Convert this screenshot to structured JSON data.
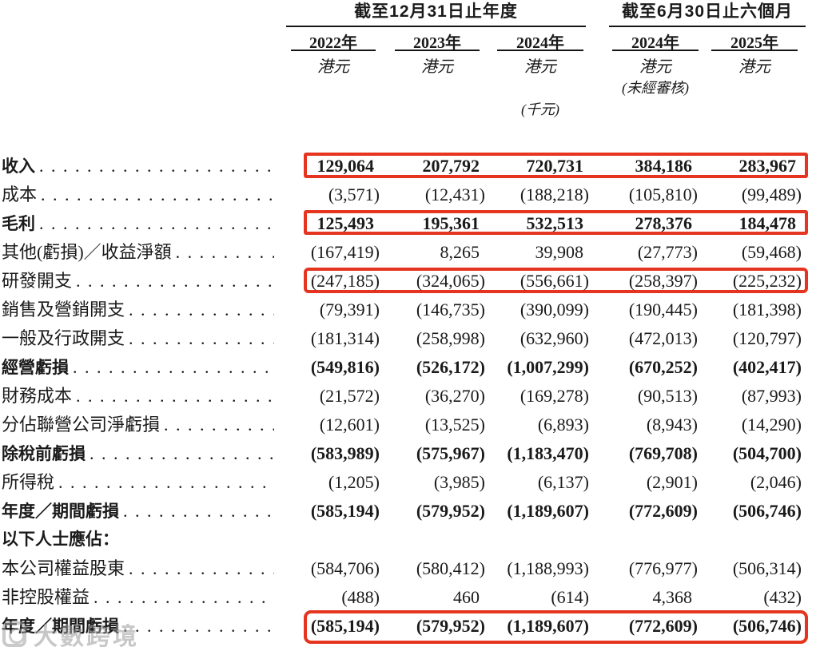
{
  "header": {
    "group1": {
      "title": "截至12月31日止年度"
    },
    "group2": {
      "title": "截至6月30日止六個月"
    },
    "columns": [
      {
        "year": "2022年",
        "currency": "港元"
      },
      {
        "year": "2023年",
        "currency": "港元"
      },
      {
        "year": "2024年",
        "currency": "港元",
        "note": "(千元)"
      },
      {
        "year": "2024年",
        "currency": "港元",
        "note": "(未經審核)"
      },
      {
        "year": "2025年",
        "currency": "港元"
      }
    ]
  },
  "rows": [
    {
      "label": "收入",
      "bold": true,
      "dots": true,
      "boxed": true,
      "values": [
        "129,064",
        "207,792",
        "720,731",
        "384,186",
        "283,967"
      ]
    },
    {
      "label": "成本",
      "bold": false,
      "dots": true,
      "boxed": false,
      "values": [
        "(3,571)",
        "(12,431)",
        "(188,218)",
        "(105,810)",
        "(99,489)"
      ]
    },
    {
      "label": "毛利",
      "bold": true,
      "dots": true,
      "boxed": true,
      "values": [
        "125,493",
        "195,361",
        "532,513",
        "278,376",
        "184,478"
      ]
    },
    {
      "label": "其他(虧損)／收益淨額",
      "bold": false,
      "dots": true,
      "boxed": false,
      "values": [
        "(167,419)",
        "8,265",
        "39,908",
        "(27,773)",
        "(59,468)"
      ]
    },
    {
      "label": "研發開支",
      "bold": false,
      "dots": true,
      "boxed": true,
      "values": [
        "(247,185)",
        "(324,065)",
        "(556,661)",
        "(258,397)",
        "(225,232)"
      ]
    },
    {
      "label": "銷售及營銷開支",
      "bold": false,
      "dots": true,
      "boxed": false,
      "values": [
        "(79,391)",
        "(146,735)",
        "(390,099)",
        "(190,445)",
        "(181,398)"
      ]
    },
    {
      "label": "一般及行政開支",
      "bold": false,
      "dots": true,
      "boxed": false,
      "values": [
        "(181,314)",
        "(258,998)",
        "(632,960)",
        "(472,013)",
        "(120,797)"
      ]
    },
    {
      "label": "經營虧損",
      "bold": true,
      "dots": true,
      "boxed": false,
      "values": [
        "(549,816)",
        "(526,172)",
        "(1,007,299)",
        "(670,252)",
        "(402,417)"
      ]
    },
    {
      "label": "財務成本",
      "bold": false,
      "dots": true,
      "boxed": false,
      "values": [
        "(21,572)",
        "(36,270)",
        "(169,278)",
        "(90,513)",
        "(87,993)"
      ]
    },
    {
      "label": "分佔聯營公司淨虧損",
      "bold": false,
      "dots": true,
      "boxed": false,
      "values": [
        "(12,601)",
        "(13,525)",
        "(6,893)",
        "(8,943)",
        "(14,290)"
      ]
    },
    {
      "label": "除稅前虧損",
      "bold": true,
      "dots": true,
      "boxed": false,
      "values": [
        "(583,989)",
        "(575,967)",
        "(1,183,470)",
        "(769,708)",
        "(504,700)"
      ]
    },
    {
      "label": "所得稅",
      "bold": false,
      "dots": true,
      "boxed": false,
      "values": [
        "(1,205)",
        "(3,985)",
        "(6,137)",
        "(2,901)",
        "(2,046)"
      ]
    },
    {
      "label": "年度／期間虧損",
      "bold": true,
      "dots": true,
      "boxed": false,
      "values": [
        "(585,194)",
        "(579,952)",
        "(1,189,607)",
        "(772,609)",
        "(506,746)"
      ]
    },
    {
      "label": "以下人士應佔：",
      "bold": true,
      "dots": false,
      "boxed": false,
      "values": []
    },
    {
      "label": "本公司權益股東",
      "bold": false,
      "dots": true,
      "boxed": false,
      "values": [
        "(584,706)",
        "(580,412)",
        "(1,188,993)",
        "(776,977)",
        "(506,314)"
      ]
    },
    {
      "label": "非控股權益",
      "bold": false,
      "dots": true,
      "boxed": false,
      "values": [
        "(488)",
        "460",
        "(614)",
        "4,368",
        "(432)"
      ]
    },
    {
      "label": "年度／期間虧損",
      "bold": true,
      "dots": true,
      "boxed": true,
      "values": [
        "(585,194)",
        "(579,952)",
        "(1,189,607)",
        "(772,609)",
        "(506,746)"
      ]
    }
  ],
  "watermark": {
    "text": "大數跨境"
  },
  "colors": {
    "highlight_red": "#e5341f",
    "text": "#1a1a1a",
    "rule": "#151515",
    "watermark_gray": "#9a9a9a"
  }
}
